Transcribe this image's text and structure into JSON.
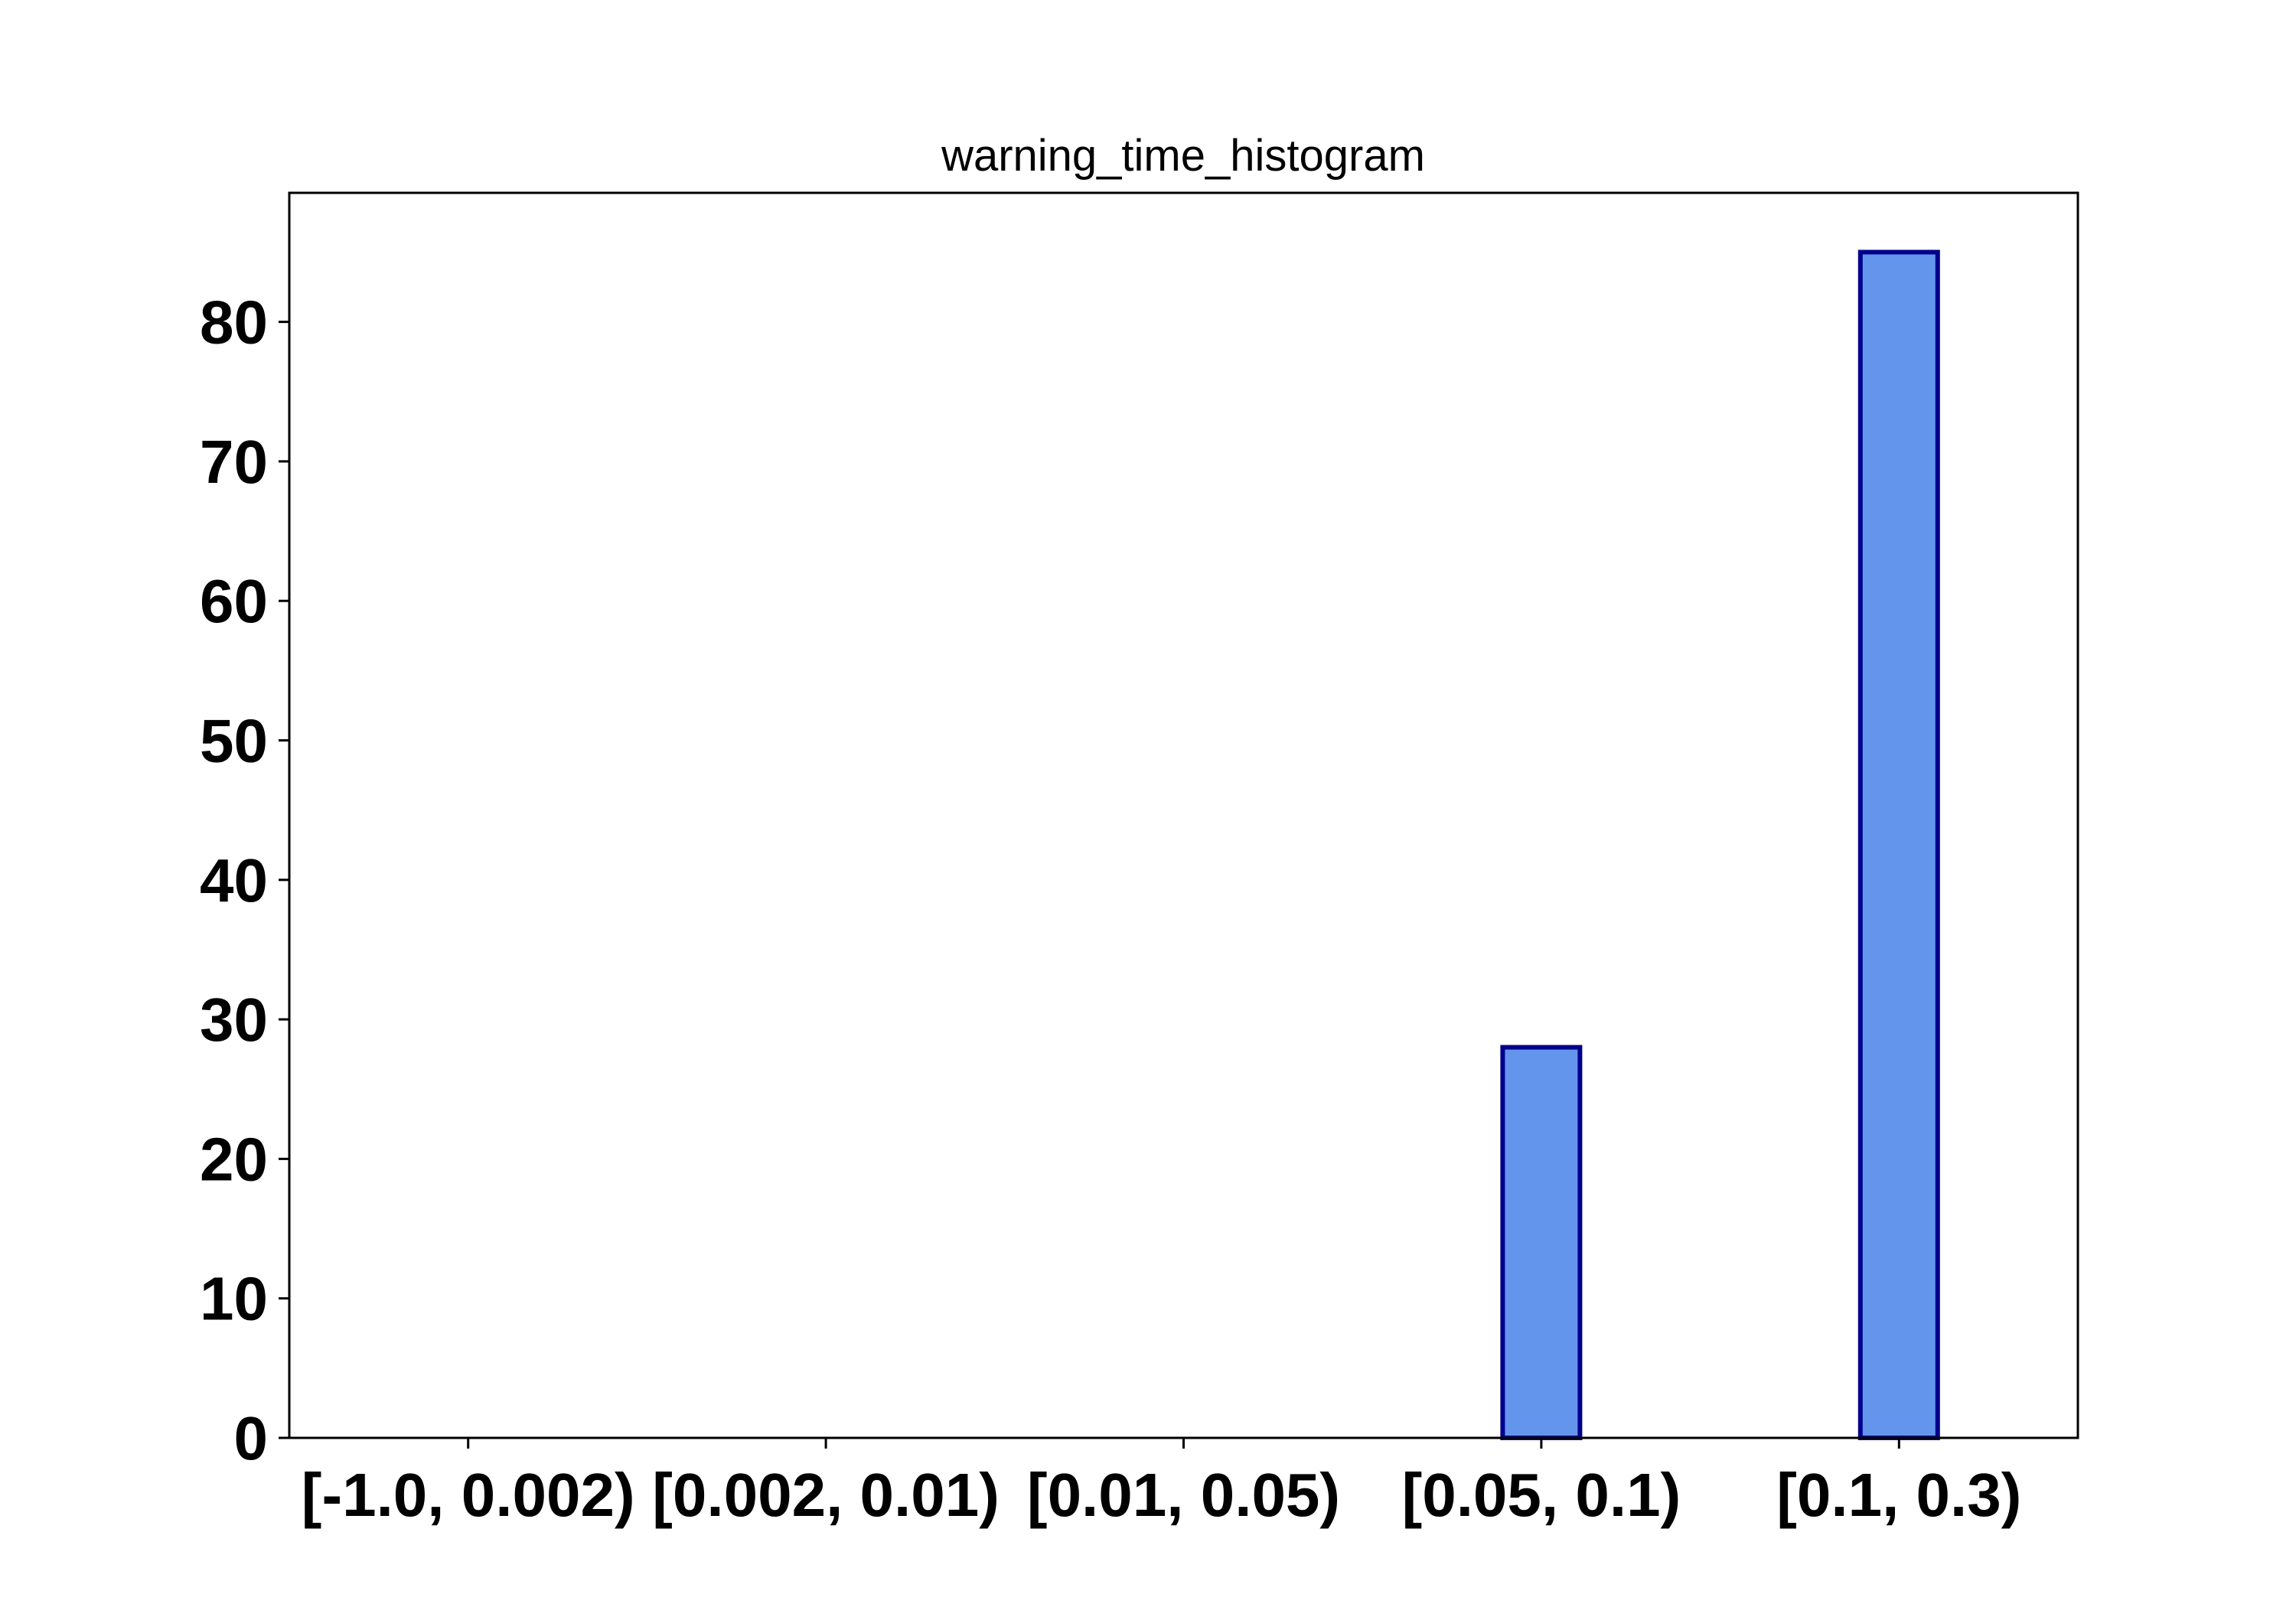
{
  "chart_data": {
    "type": "bar",
    "title": "warning_time_histogram",
    "xlabel": "",
    "ylabel": "",
    "categories": [
      "[-1.0, 0.002)",
      "[0.002, 0.01)",
      "[0.01, 0.05)",
      "[0.05, 0.1)",
      "[0.1, 0.3)"
    ],
    "values": [
      0,
      0,
      0,
      28,
      85
    ],
    "ylim": [
      0,
      89.25
    ],
    "yticks": [
      0,
      10,
      20,
      30,
      40,
      50,
      60,
      70,
      80
    ],
    "grid": false,
    "legend": "none",
    "colors": {
      "bar_fill": "#6495ED",
      "bar_edge": "#00008B",
      "axis": "#000000",
      "text": "#000000"
    }
  }
}
